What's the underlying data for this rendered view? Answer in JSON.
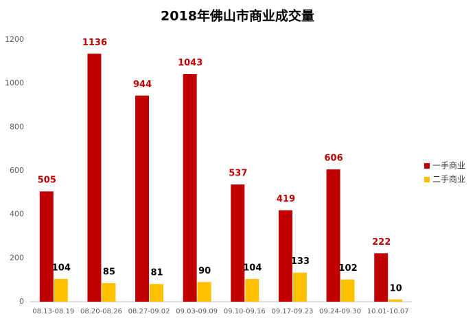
{
  "chart_data": {
    "type": "bar",
    "title": "2018年佛山市商业成交量",
    "categories": [
      "08.13-08.19",
      "08.20-08.26",
      "08.27-09.02",
      "09.03-09.09",
      "09.10-09.16",
      "09.17-09.23",
      "09.24-09.30",
      "10.01-10.07"
    ],
    "series": [
      {
        "name": "一手商业",
        "color": "#C00000",
        "label_color": "#C00000",
        "values": [
          505,
          1136,
          944,
          1043,
          537,
          419,
          606,
          222
        ]
      },
      {
        "name": "二手商业",
        "color": "#FFC000",
        "label_color": "#000000",
        "values": [
          104,
          85,
          81,
          90,
          104,
          133,
          102,
          10
        ]
      }
    ],
    "ylim": [
      0,
      1200
    ],
    "yticks": [
      0,
      200,
      400,
      600,
      800,
      1000,
      1200
    ],
    "grid": false,
    "legend": "right"
  }
}
